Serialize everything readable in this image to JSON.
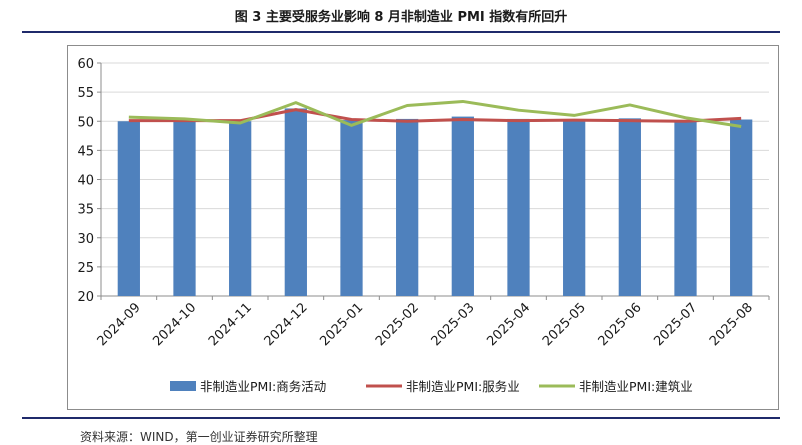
{
  "figure": {
    "title": "图 3   主要受服务业影响 8 月非制造业 PMI 指数有所回升",
    "source": "资料来源：WIND，第一创业证券研究所整理"
  },
  "colors": {
    "rule": "#1f2a6b",
    "bar": "#4f81bd",
    "services": "#c0504d",
    "construction": "#9bbb59",
    "grid": "#d9d9d9",
    "axis": "#8c8c8c"
  },
  "chart_data": {
    "type": "bar",
    "title": "",
    "xlabel": "",
    "ylabel": "",
    "ylim": [
      20,
      60
    ],
    "yticks": [
      20,
      25,
      30,
      35,
      40,
      45,
      50,
      55,
      60
    ],
    "grid": true,
    "legend_position": "bottom",
    "categories": [
      "2024-09",
      "2024-10",
      "2024-11",
      "2024-12",
      "2025-01",
      "2025-02",
      "2025-03",
      "2025-04",
      "2025-05",
      "2025-06",
      "2025-07",
      "2025-08"
    ],
    "series": [
      {
        "name": "非制造业PMI:商务活动",
        "kind": "bar",
        "color": "#4f81bd",
        "values": [
          50.0,
          50.2,
          50.0,
          52.2,
          50.2,
          50.4,
          50.8,
          50.4,
          50.3,
          50.5,
          50.1,
          50.3
        ]
      },
      {
        "name": "非制造业PMI:服务业",
        "kind": "line",
        "color": "#c0504d",
        "values": [
          50.1,
          50.1,
          50.1,
          52.0,
          50.3,
          50.0,
          50.3,
          50.1,
          50.2,
          50.1,
          50.0,
          50.5
        ]
      },
      {
        "name": "非制造业PMI:建筑业",
        "kind": "line",
        "color": "#9bbb59",
        "values": [
          50.7,
          50.4,
          49.7,
          53.2,
          49.3,
          52.7,
          53.4,
          51.9,
          51.0,
          52.8,
          50.6,
          49.1
        ]
      }
    ]
  }
}
